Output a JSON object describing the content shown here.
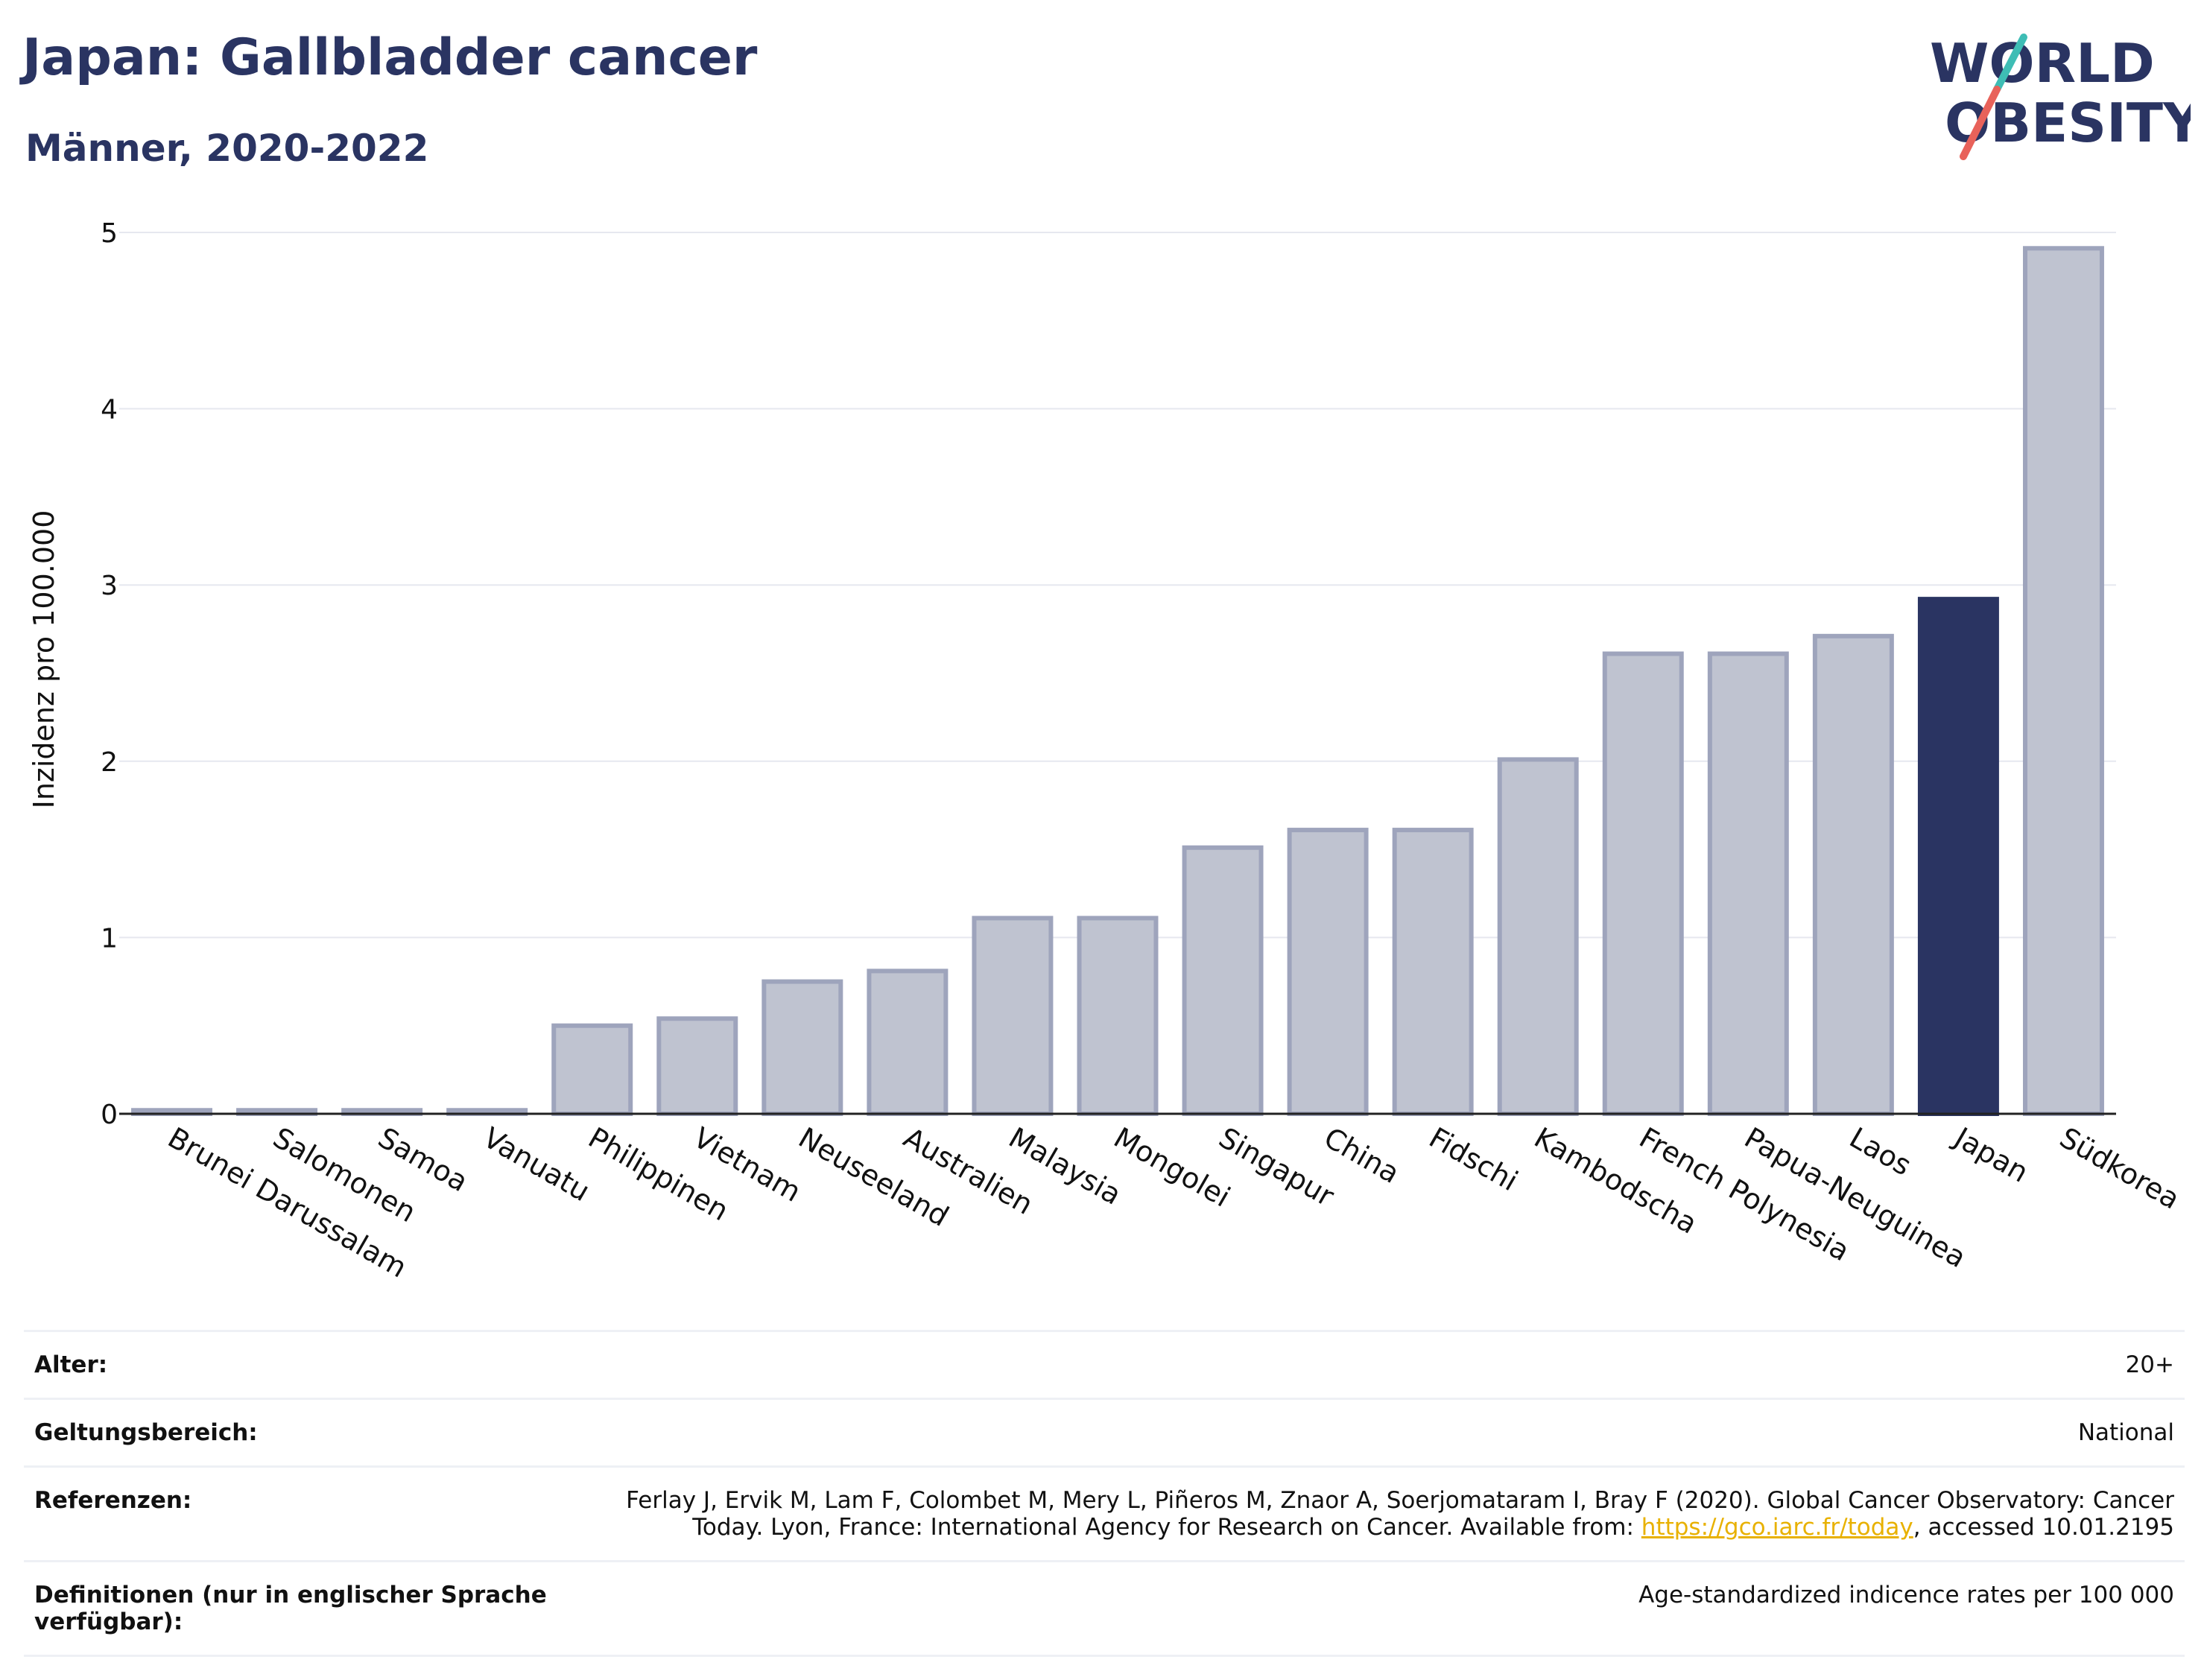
{
  "header": {
    "title": "Japan: Gallbladder cancer",
    "subtitle": "Männer, 2020-2022"
  },
  "logo": {
    "line1": "WORLD",
    "line2": "OBESITY",
    "accent_colors": [
      "#3ebdb5",
      "#e8625a"
    ]
  },
  "chart_data": {
    "type": "bar",
    "title": "",
    "xlabel": "",
    "ylabel": "Inzidenz pro 100.000",
    "ylim": [
      0,
      5
    ],
    "yticks": [
      0,
      1,
      2,
      3,
      4,
      5
    ],
    "grid": true,
    "highlight": "Japan",
    "colors": {
      "default": "#bfc3d0",
      "default_border": "#9ea4bc",
      "highlight": "#2a3462"
    },
    "categories": [
      "Brunei Darussalam",
      "Salomonen",
      "Samoa",
      "Vanuatu",
      "Philippinen",
      "Vietnam",
      "Neuseeland",
      "Australien",
      "Malaysia",
      "Mongolei",
      "Singapur",
      "China",
      "Fidschi",
      "Kambodscha",
      "French Polynesia",
      "Papua-Neuguinea",
      "Laos",
      "Japan",
      "Südkorea"
    ],
    "values": [
      0.02,
      0.02,
      0.02,
      0.02,
      0.5,
      0.54,
      0.75,
      0.81,
      1.11,
      1.11,
      1.51,
      1.61,
      1.61,
      2.01,
      2.61,
      2.61,
      2.71,
      2.92,
      4.91
    ]
  },
  "info": {
    "rows": [
      {
        "key": "Alter:",
        "value": "20+"
      },
      {
        "key": "Geltungsbereich:",
        "value": "National"
      },
      {
        "key": "Referenzen:",
        "value": "Ferlay J, Ervik M, Lam F, Colombet M, Mery L, Piñeros M, Znaor A, Soerjomataram I, Bray F (2020). Global Cancer Observatory: Cancer Today. Lyon, France: International Agency for Research on Cancer. Available from: ",
        "link": "https://gco.iarc.fr/today",
        "value_after": ", accessed 10.01.2195"
      },
      {
        "key": "Definitionen (nur in englischer Sprache verfügbar):",
        "value": "Age-standardized indicence rates per 100 000"
      }
    ]
  }
}
